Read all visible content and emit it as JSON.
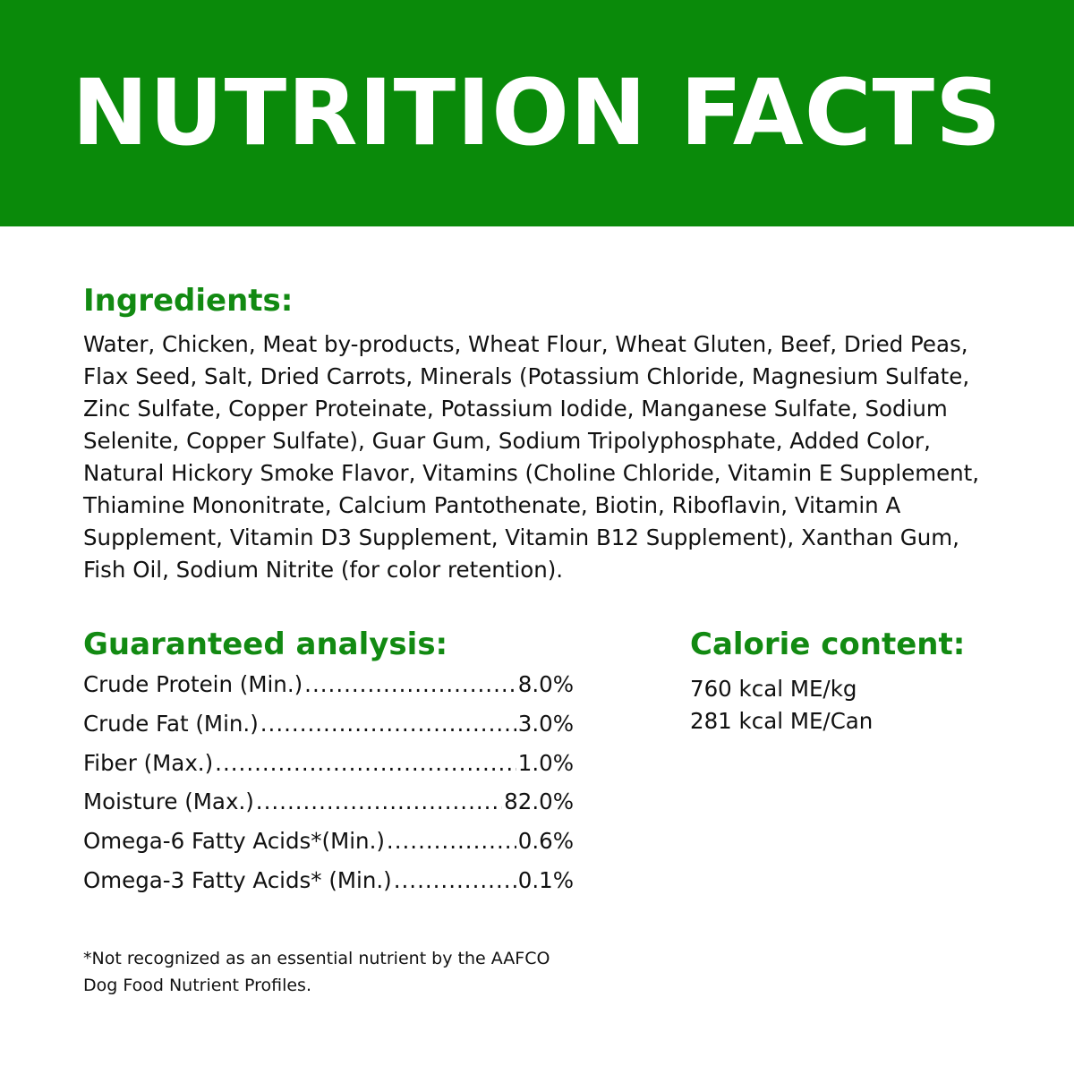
{
  "banner": {
    "title": "NUTRITION FACTS",
    "color": "#0a8a0a"
  },
  "ingredients": {
    "heading": "Ingredients:",
    "text": "Water, Chicken, Meat by-products, Wheat Flour, Wheat Gluten, Beef, Dried Peas, Flax Seed, Salt, Dried Carrots, Minerals (Potassium Chloride, Magnesium Sulfate, Zinc Sulfate, Copper Proteinate, Potassium Iodide, Manganese Sulfate, Sodium Selenite, Copper Sulfate), Guar Gum, Sodium Tripolyphosphate, Added Color, Natural Hickory Smoke Flavor, Vitamins (Choline Chloride, Vitamin E Supplement, Thiamine Mononitrate, Calcium Pantothenate, Biotin, Riboflavin, Vitamin A Supplement, Vitamin D3 Supplement, Vitamin B12 Supplement), Xanthan Gum, Fish Oil, Sodium Nitrite (for color retention)."
  },
  "analysis": {
    "heading": "Guaranteed analysis:",
    "rows": [
      {
        "label": "Crude Protein (Min.)",
        "value": "8.0%"
      },
      {
        "label": "Crude Fat (Min.)",
        "value": "3.0%"
      },
      {
        "label": "Fiber (Max.)",
        "value": "1.0%"
      },
      {
        "label": "Moisture (Max.)",
        "value": "82.0%"
      },
      {
        "label": "Omega-6 Fatty Acids*(Min.)",
        "value": "0.6%"
      },
      {
        "label": "Omega-3 Fatty Acids* (Min.)",
        "value": "0.1%"
      }
    ]
  },
  "calorie": {
    "heading": "Calorie content:",
    "lines": [
      "760 kcal ME/kg",
      "281 kcal ME/Can"
    ]
  },
  "footnote": {
    "line1": "*Not recognized as an essential nutrient by the AAFCO",
    "line2": "Dog Food Nutrient Profiles."
  },
  "colors": {
    "heading_green": "#128a12",
    "text": "#111111"
  }
}
